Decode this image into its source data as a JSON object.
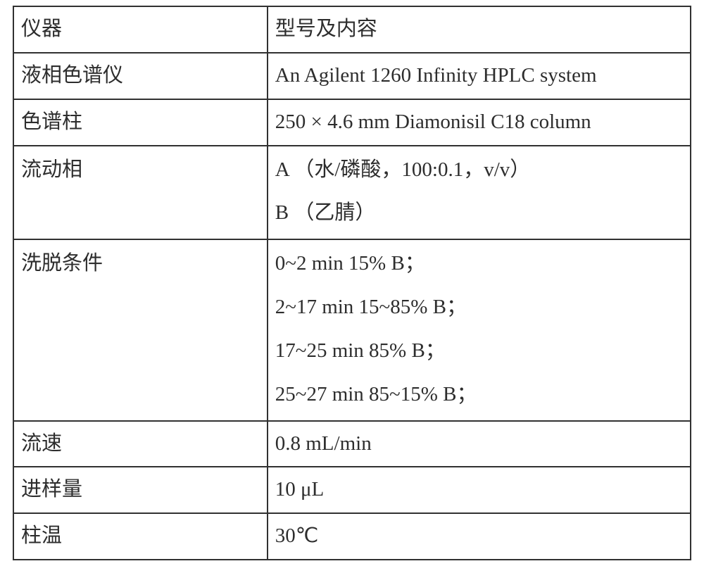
{
  "table": {
    "border_color": "#313131",
    "background_color": "#ffffff",
    "text_color": "#2d2d2d",
    "font_family": "SimSun / Times New Roman",
    "font_size_pt": 22,
    "column_widths_pct": [
      37.5,
      62.5
    ],
    "rows": [
      {
        "left": "仪器",
        "right": [
          "型号及内容"
        ]
      },
      {
        "left": "液相色谱仪",
        "right": [
          "An Agilent 1260 Infinity HPLC system"
        ]
      },
      {
        "left": "色谱柱",
        "right": [
          "250 × 4.6 mm Diamonisil C18 column"
        ]
      },
      {
        "left": "流动相",
        "right": [
          "A （水/磷酸，100:0.1，v/v）",
          "B （乙腈）"
        ]
      },
      {
        "left": "洗脱条件",
        "right": [
          "0~2 min 15% B；",
          "2~17 min 15~85% B；",
          "17~25 min 85% B；",
          "25~27 min 85~15% B；"
        ]
      },
      {
        "left": "流速",
        "right": [
          "0.8 mL/min"
        ]
      },
      {
        "left": "进样量",
        "right": [
          "10 μL"
        ]
      },
      {
        "left": "柱温",
        "right": [
          "30℃"
        ]
      }
    ]
  }
}
